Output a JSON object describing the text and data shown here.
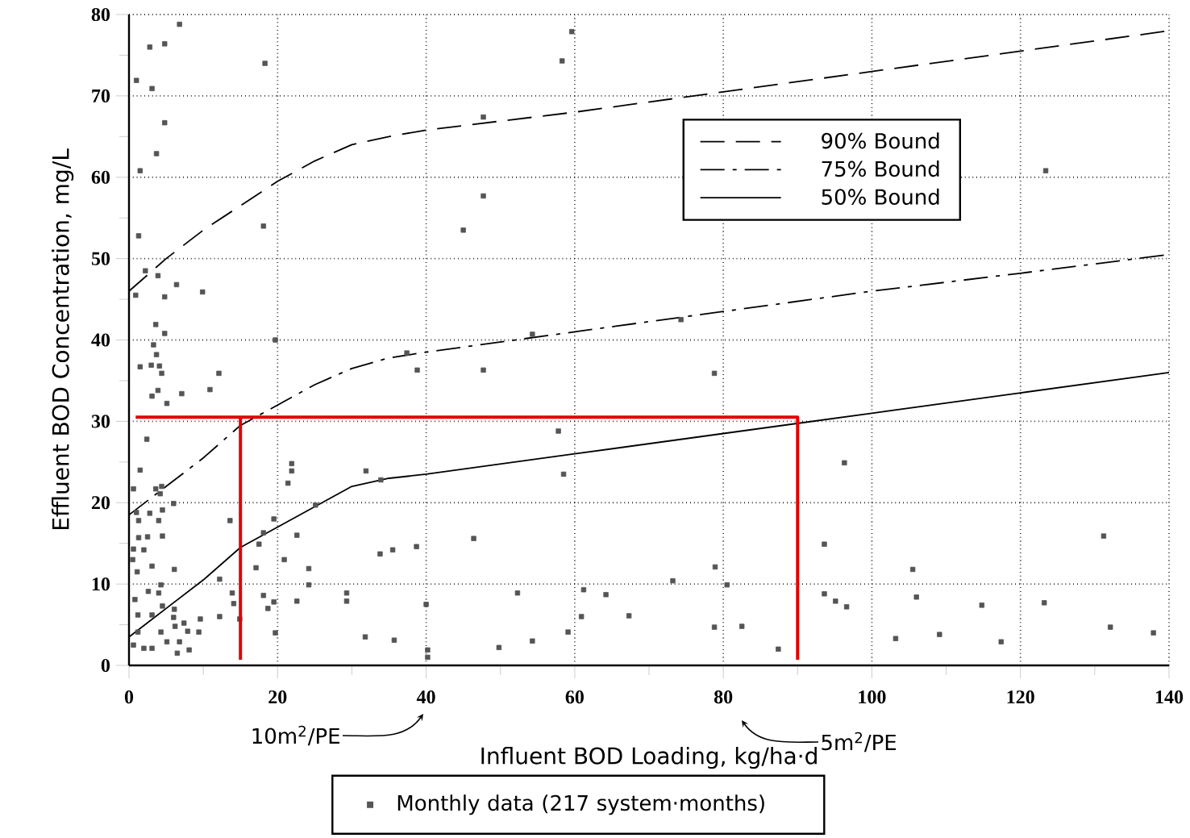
{
  "chart_data": {
    "type": "scatter",
    "xlabel": "Influent BOD Loading, kg/ha·d",
    "ylabel": "Effluent BOD Concentration, mg/L",
    "xlim": [
      0,
      140
    ],
    "ylim": [
      0,
      80
    ],
    "xticks": [
      0,
      {
        "value": 10,
        "label": null
      },
      20,
      {
        "value": 30,
        "label": null
      },
      40,
      {
        "value": 50,
        "label": null
      },
      60,
      {
        "value": 70,
        "label": null
      },
      80,
      {
        "value": 90,
        "label": null
      },
      100,
      {
        "value": 110,
        "label": null
      },
      120,
      {
        "value": 130,
        "label": null
      },
      140
    ],
    "yticks": [
      0,
      {
        "value": 5,
        "label": null
      },
      10,
      {
        "value": 15,
        "label": null
      },
      20,
      {
        "value": 25,
        "label": null
      },
      30,
      {
        "value": 35,
        "label": null
      },
      40,
      {
        "value": 45,
        "label": null
      },
      50,
      {
        "value": 55,
        "label": null
      },
      60,
      {
        "value": 65,
        "label": null
      },
      70,
      {
        "value": 75,
        "label": null
      },
      80
    ],
    "grid": true,
    "legend": "right",
    "annotations": [
      "10m$^{2}$/PE",
      "5m$^{2}$/PE"
    ],
    "series": [
      {
        "name": "90% Bound",
        "type": "line",
        "line_style": "dashed",
        "color": "#000000",
        "x": [
          0,
          5,
          10,
          15,
          20,
          25,
          30,
          35,
          40,
          60,
          80,
          100,
          120,
          140
        ],
        "values": [
          46,
          50,
          53.5,
          56.5,
          59.5,
          62,
          64,
          65,
          65.8,
          68,
          70.5,
          73,
          75.5,
          78
        ]
      },
      {
        "name": "75% Bound",
        "type": "line",
        "line_style": "dashdot",
        "color": "#000000",
        "x": [
          0,
          5,
          10,
          15,
          20,
          25,
          30,
          35,
          40,
          60,
          80,
          100,
          120,
          140
        ],
        "values": [
          18.5,
          22,
          25.5,
          29.5,
          32,
          34.5,
          36.5,
          37.8,
          38.5,
          41,
          43.5,
          46,
          48.2,
          50.5
        ]
      },
      {
        "name": "50% Bound",
        "type": "line",
        "line_style": "solid",
        "color": "#000000",
        "x": [
          0,
          5,
          10,
          15,
          20,
          25,
          30,
          35,
          40,
          60,
          80,
          100,
          120,
          140
        ],
        "values": [
          3.5,
          7,
          10.5,
          14.5,
          17,
          19.5,
          22,
          23,
          23.5,
          26,
          28.5,
          31,
          33.5,
          36
        ]
      },
      {
        "name": "Monthly data (217 system·months)",
        "marker": "square",
        "color": "#555555",
        "x": [
          6.8,
          2.8,
          4.8,
          1.0,
          3.1,
          18.3,
          4.8,
          3.7,
          1.5,
          1.3,
          18.1,
          2.2,
          3.9,
          0.9,
          4.8,
          6.4,
          9.9,
          3.6,
          4.8,
          3.3,
          19.7,
          3.7,
          1.5,
          3.0,
          4.1,
          4.4,
          12.1,
          3.9,
          3.1,
          5.1,
          7.1,
          10.9,
          2.4,
          1.5,
          0.6,
          3.6,
          4.4,
          4.2,
          6.0,
          1.0,
          2.8,
          4.5,
          1.3,
          4.0,
          13.6,
          1.3,
          2.5,
          4.5,
          0.6,
          2.0,
          3.1,
          0.5,
          1.1,
          6.1,
          4.3,
          0.8,
          2.6,
          4.0,
          4.5,
          6.1,
          12.2,
          13.9,
          14.1,
          1.2,
          3.1,
          6.0,
          7.4,
          9.6,
          12.2,
          14.9,
          6.2,
          4.3,
          7.9,
          9.4,
          1.2,
          5.1,
          6.8,
          0.6,
          2.0,
          3.1,
          6.5,
          8.1,
          18.1,
          17.5,
          17.1,
          18.1,
          18.7,
          19.5,
          19.7,
          19.5,
          21.9,
          21.9,
          21.4,
          22.6,
          20.9,
          22.6,
          59.6,
          58.3,
          47.7,
          47.7,
          45.0,
          37.4,
          38.8,
          47.7,
          54.3,
          57.8,
          58.5,
          31.9,
          33.9,
          25.1,
          24.2,
          24.2,
          46.4,
          33.8,
          35.5,
          38.7,
          29.3,
          29.3,
          40.0,
          52.3,
          61.2,
          64.2,
          60.9,
          59.1,
          31.8,
          35.7,
          40.2,
          40.2,
          49.8,
          54.3,
          74.3,
          78.8,
          123.4,
          96.3,
          93.6,
          105.5,
          131.2,
          73.2,
          78.9,
          80.5,
          67.3,
          93.6,
          95.1,
          96.6,
          106.0,
          114.8,
          123.2,
          78.8,
          82.5,
          87.4,
          103.2,
          109.1,
          117.4,
          132.1,
          137.9
        ],
        "values": [
          78.8,
          76,
          76.4,
          71.9,
          70.9,
          74,
          66.7,
          62.9,
          60.8,
          52.8,
          54,
          48.5,
          47.9,
          45.5,
          45.3,
          46.8,
          45.9,
          41.9,
          40.8,
          39.4,
          40,
          38.2,
          36.7,
          36.9,
          36.8,
          35.9,
          35.9,
          33.8,
          33.1,
          32.2,
          33.4,
          33.9,
          27.8,
          24,
          21.7,
          21.7,
          22,
          21.1,
          19.9,
          18.8,
          18.7,
          19.1,
          17.8,
          17.8,
          17.8,
          15.7,
          15.8,
          15.9,
          14.3,
          14.2,
          12.2,
          13,
          11.5,
          11.8,
          9.9,
          8.1,
          9.1,
          8.9,
          7.3,
          6.9,
          10.6,
          8.9,
          7.6,
          6.2,
          6.2,
          5.9,
          5.2,
          5.7,
          6,
          5.7,
          4.8,
          4.1,
          4.2,
          4.1,
          4.1,
          2.9,
          2.9,
          2.5,
          2.1,
          2.1,
          1.5,
          1.9,
          16.3,
          14.9,
          12,
          8.6,
          7,
          7.8,
          4,
          18,
          24.8,
          23.9,
          22.4,
          16,
          13,
          7.9,
          77.9,
          74.3,
          67.4,
          57.7,
          53.5,
          38.4,
          36.3,
          36.3,
          40.7,
          28.8,
          23.5,
          23.9,
          22.8,
          19.7,
          11.9,
          9.9,
          15.6,
          13.7,
          14.2,
          14.6,
          8.9,
          7.9,
          7.5,
          8.9,
          9.3,
          8.7,
          6.0,
          4.1,
          3.5,
          3.1,
          1.9,
          1.0,
          2.2,
          3.0,
          42.5,
          35.9,
          60.8,
          24.9,
          14.9,
          11.8,
          15.9,
          10.4,
          12.1,
          9.9,
          6.1,
          8.8,
          7.9,
          7.2,
          8.4,
          7.4,
          7.7,
          4.7,
          4.8,
          2.0,
          3.3,
          3.8,
          2.9,
          4.7,
          4.0
        ]
      },
      {
        "type": "line",
        "line_style": "solid",
        "color": "#e00000",
        "x": [
          0.9,
          90,
          90
        ],
        "values": [
          30.5,
          30.5,
          0.7
        ]
      },
      {
        "type": "line",
        "line_style": "solid",
        "color": "#e00000",
        "x": [
          15,
          15
        ],
        "values": [
          30.5,
          0.7
        ]
      }
    ]
  }
}
